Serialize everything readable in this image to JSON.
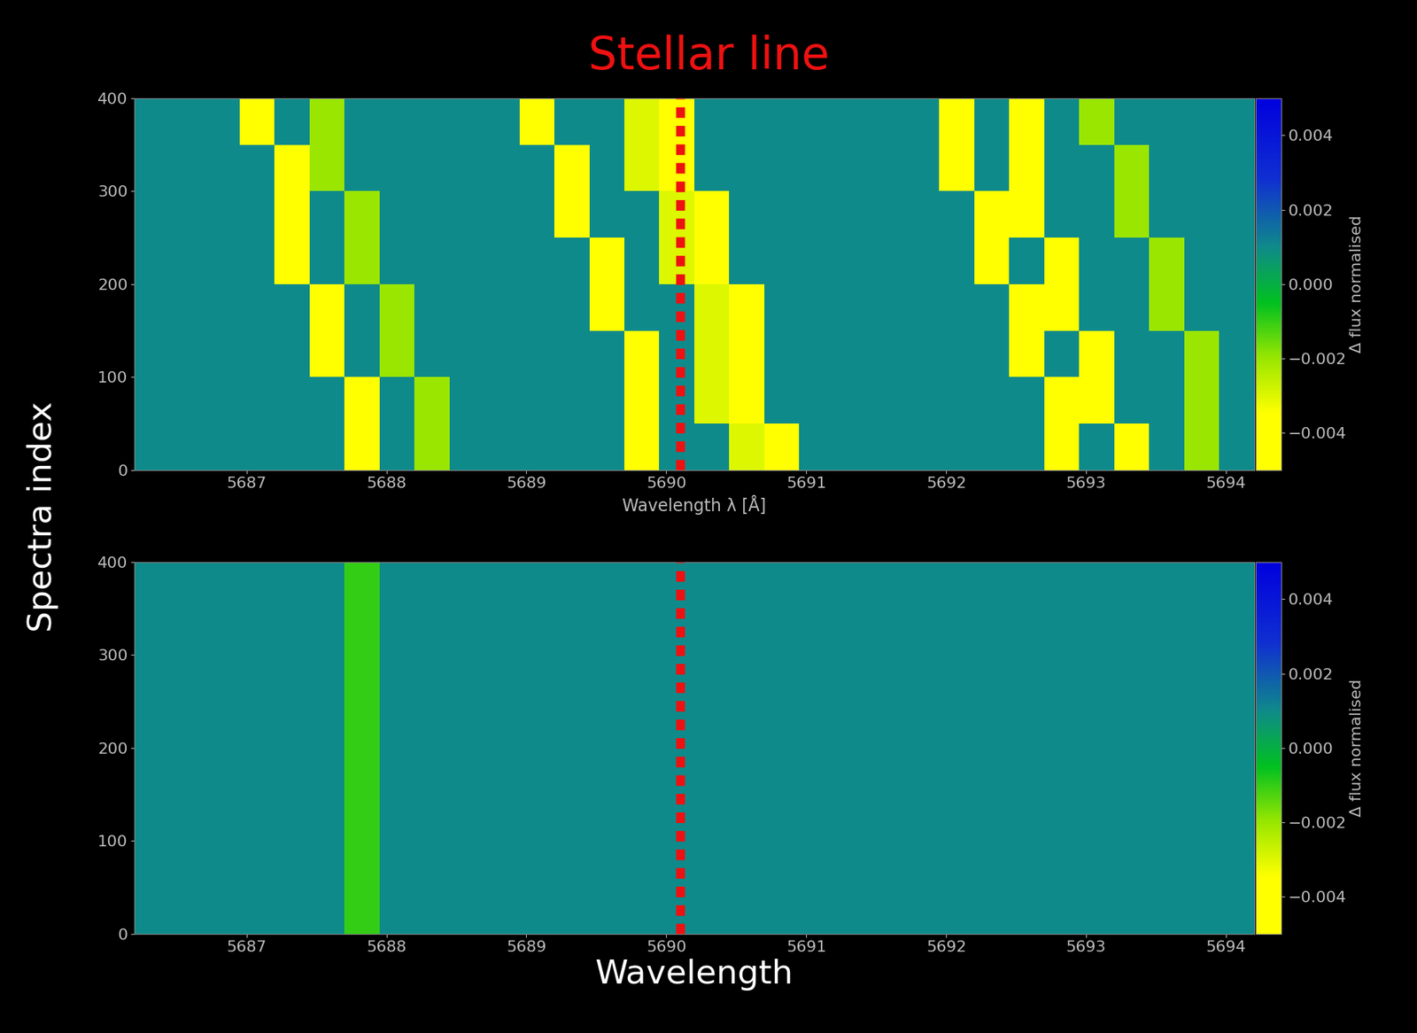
{
  "chart_data": [
    {
      "type": "heatmap",
      "title": "Stellar line",
      "ylabel": "Spectra index",
      "xlabel": "Wavelength λ [Å]",
      "x_bins": [
        5686.2,
        5686.45,
        5686.7,
        5686.95,
        5687.2,
        5687.45,
        5687.7,
        5687.95,
        5688.2,
        5688.45,
        5688.7,
        5688.95,
        5689.2,
        5689.45,
        5689.7,
        5689.95,
        5690.2,
        5690.45,
        5690.7,
        5690.95,
        5691.2,
        5691.45,
        5691.7,
        5691.95,
        5692.2,
        5692.45,
        5692.7,
        5692.95,
        5693.2,
        5693.45,
        5693.7,
        5693.95,
        5694.2
      ],
      "y_bins": [
        0,
        50,
        100,
        150,
        200,
        250,
        300,
        350,
        400
      ],
      "cells": [
        [
          0.001,
          0.001,
          0.001,
          0.001,
          0.001,
          0.001,
          -0.005,
          0.001,
          -0.002,
          0.001,
          0.001,
          0.001,
          0.001,
          0.001,
          -0.005,
          0.001,
          0.001,
          -0.003,
          -0.005,
          0.001,
          0.001,
          0.001,
          0.001,
          0.001,
          0.001,
          0.001,
          -0.005,
          0.001,
          -0.004,
          0.001,
          -0.002,
          0.001
        ],
        [
          0.001,
          0.001,
          0.001,
          0.001,
          0.001,
          0.001,
          -0.005,
          0.001,
          -0.002,
          0.001,
          0.001,
          0.001,
          0.001,
          0.001,
          -0.005,
          0.001,
          -0.003,
          -0.005,
          0.001,
          0.001,
          0.001,
          0.001,
          0.001,
          0.001,
          0.001,
          0.001,
          -0.005,
          -0.004,
          0.001,
          0.001,
          -0.002,
          0.001
        ],
        [
          0.001,
          0.001,
          0.001,
          0.001,
          0.001,
          -0.005,
          0.001,
          -0.002,
          0.001,
          0.001,
          0.001,
          0.001,
          0.001,
          0.001,
          -0.005,
          0.001,
          -0.003,
          -0.005,
          0.001,
          0.001,
          0.001,
          0.001,
          0.001,
          0.001,
          0.001,
          -0.005,
          0.001,
          -0.004,
          0.001,
          0.001,
          -0.002,
          0.001
        ],
        [
          0.001,
          0.001,
          0.001,
          0.001,
          0.001,
          -0.005,
          0.001,
          -0.002,
          0.001,
          0.001,
          0.001,
          0.001,
          0.001,
          -0.005,
          0.001,
          0.001,
          -0.003,
          -0.005,
          0.001,
          0.001,
          0.001,
          0.001,
          0.001,
          0.001,
          0.001,
          -0.005,
          -0.004,
          0.001,
          0.001,
          -0.002,
          0.001,
          0.001
        ],
        [
          0.001,
          0.001,
          0.001,
          0.001,
          -0.005,
          0.001,
          -0.002,
          0.001,
          0.001,
          0.001,
          0.001,
          0.001,
          0.001,
          -0.005,
          0.001,
          -0.003,
          -0.005,
          0.001,
          0.001,
          0.001,
          0.001,
          0.001,
          0.001,
          0.001,
          -0.005,
          0.001,
          -0.004,
          0.001,
          0.001,
          -0.002,
          0.001,
          0.001
        ],
        [
          0.001,
          0.001,
          0.001,
          0.001,
          -0.005,
          0.001,
          -0.002,
          0.001,
          0.001,
          0.001,
          0.001,
          0.001,
          -0.005,
          0.001,
          0.001,
          -0.003,
          -0.005,
          0.001,
          0.001,
          0.001,
          0.001,
          0.001,
          0.001,
          0.001,
          -0.005,
          -0.004,
          0.001,
          0.001,
          -0.002,
          0.001,
          0.001,
          0.001
        ],
        [
          0.001,
          0.001,
          0.001,
          0.001,
          -0.005,
          -0.002,
          0.001,
          0.001,
          0.001,
          0.001,
          0.001,
          0.001,
          -0.005,
          0.001,
          -0.003,
          -0.005,
          0.001,
          0.001,
          0.001,
          0.001,
          0.001,
          0.001,
          0.001,
          -0.005,
          0.001,
          -0.004,
          0.001,
          0.001,
          -0.002,
          0.001,
          0.001,
          0.001
        ],
        [
          0.001,
          0.001,
          0.001,
          -0.005,
          0.001,
          -0.002,
          0.001,
          0.001,
          0.001,
          0.001,
          0.001,
          -0.005,
          0.001,
          0.001,
          -0.003,
          -0.005,
          0.001,
          0.001,
          0.001,
          0.001,
          0.001,
          0.001,
          0.001,
          -0.005,
          0.001,
          -0.004,
          0.001,
          -0.002,
          0.001,
          0.001,
          0.001,
          0.001
        ]
      ],
      "xlim": [
        5686.2,
        5694.2
      ],
      "ylim": [
        0,
        400
      ],
      "xticks": [
        5687,
        5688,
        5689,
        5690,
        5691,
        5692,
        5693,
        5694
      ],
      "yticks": [
        0,
        100,
        200,
        300,
        400
      ],
      "reference_line": 5690.1,
      "colorbar": {
        "label": "Δ flux normalised",
        "range": [
          -0.005,
          0.005
        ],
        "ticks": [
          {
            "value": -0.004,
            "label": "−0.004"
          },
          {
            "value": -0.002,
            "label": "−0.002"
          },
          {
            "value": 0,
            "label": "0.000"
          },
          0.002,
          0.004
        ]
      }
    },
    {
      "type": "heatmap",
      "xlabel": "Wavelength",
      "x_bins": [
        5686.2,
        5686.45,
        5686.7,
        5686.95,
        5687.2,
        5687.45,
        5687.7,
        5687.95,
        5688.2,
        5688.45,
        5688.7,
        5688.95,
        5689.2,
        5689.45,
        5689.7,
        5689.95,
        5690.2,
        5690.45,
        5690.7,
        5690.95,
        5691.2,
        5691.45,
        5691.7,
        5691.95,
        5692.2,
        5692.45,
        5692.7,
        5692.95,
        5693.2,
        5693.45,
        5693.7,
        5693.95,
        5694.2
      ],
      "y_bins": [
        0,
        50,
        100,
        150,
        200,
        250,
        300,
        350,
        400
      ],
      "cells": [
        [
          0.001,
          0.001,
          0.001,
          0.001,
          0.001,
          0.001,
          -0.001,
          0.001,
          0.001,
          0.001,
          0.001,
          0.001,
          0.001,
          0.001,
          0.001,
          0.001,
          0.001,
          0.001,
          0.001,
          0.001,
          0.001,
          0.001,
          0.001,
          0.001,
          0.001,
          0.001,
          0.001,
          0.001,
          0.001,
          0.001,
          0.001,
          0.001
        ],
        [
          0.001,
          0.001,
          0.001,
          0.001,
          0.001,
          0.001,
          -0.001,
          0.001,
          0.001,
          0.001,
          0.001,
          0.001,
          0.001,
          0.001,
          0.001,
          0.001,
          0.001,
          0.001,
          0.001,
          0.001,
          0.001,
          0.001,
          0.001,
          0.001,
          0.001,
          0.001,
          0.001,
          0.001,
          0.001,
          0.001,
          0.001,
          0.001
        ],
        [
          0.001,
          0.001,
          0.001,
          0.001,
          0.001,
          0.001,
          -0.001,
          0.001,
          0.001,
          0.001,
          0.001,
          0.001,
          0.001,
          0.001,
          0.001,
          0.001,
          0.001,
          0.001,
          0.001,
          0.001,
          0.001,
          0.001,
          0.001,
          0.001,
          0.001,
          0.001,
          0.001,
          0.001,
          0.001,
          0.001,
          0.001,
          0.001
        ],
        [
          0.001,
          0.001,
          0.001,
          0.001,
          0.001,
          0.001,
          -0.001,
          0.001,
          0.001,
          0.001,
          0.001,
          0.001,
          0.001,
          0.001,
          0.001,
          0.001,
          0.001,
          0.001,
          0.001,
          0.001,
          0.001,
          0.001,
          0.001,
          0.001,
          0.001,
          0.001,
          0.001,
          0.001,
          0.001,
          0.001,
          0.001,
          0.001
        ],
        [
          0.001,
          0.001,
          0.001,
          0.001,
          0.001,
          0.001,
          -0.001,
          0.001,
          0.001,
          0.001,
          0.001,
          0.001,
          0.001,
          0.001,
          0.001,
          0.001,
          0.001,
          0.001,
          0.001,
          0.001,
          0.001,
          0.001,
          0.001,
          0.001,
          0.001,
          0.001,
          0.001,
          0.001,
          0.001,
          0.001,
          0.001,
          0.001
        ],
        [
          0.001,
          0.001,
          0.001,
          0.001,
          0.001,
          0.001,
          -0.001,
          0.001,
          0.001,
          0.001,
          0.001,
          0.001,
          0.001,
          0.001,
          0.001,
          0.001,
          0.001,
          0.001,
          0.001,
          0.001,
          0.001,
          0.001,
          0.001,
          0.001,
          0.001,
          0.001,
          0.001,
          0.001,
          0.001,
          0.001,
          0.001,
          0.001
        ],
        [
          0.001,
          0.001,
          0.001,
          0.001,
          0.001,
          0.001,
          -0.001,
          0.001,
          0.001,
          0.001,
          0.001,
          0.001,
          0.001,
          0.001,
          0.001,
          0.001,
          0.001,
          0.001,
          0.001,
          0.001,
          0.001,
          0.001,
          0.001,
          0.001,
          0.001,
          0.001,
          0.001,
          0.001,
          0.001,
          0.001,
          0.001,
          0.001
        ],
        [
          0.001,
          0.001,
          0.001,
          0.001,
          0.001,
          0.001,
          -0.001,
          0.001,
          0.001,
          0.001,
          0.001,
          0.001,
          0.001,
          0.001,
          0.001,
          0.001,
          0.001,
          0.001,
          0.001,
          0.001,
          0.001,
          0.001,
          0.001,
          0.001,
          0.001,
          0.001,
          0.001,
          0.001,
          0.001,
          0.001,
          0.001,
          0.001
        ]
      ],
      "xlim": [
        5686.2,
        5694.2
      ],
      "ylim": [
        0,
        400
      ],
      "xticks": [
        5687,
        5688,
        5689,
        5690,
        5691,
        5692,
        5693,
        5694
      ],
      "yticks": [
        0,
        100,
        200,
        300,
        400
      ],
      "reference_line": 5690.1,
      "colorbar": {
        "label": "Δ flux normalised",
        "range": [
          -0.005,
          0.005
        ],
        "ticks": [
          {
            "value": -0.004,
            "label": "−0.004"
          },
          {
            "value": -0.002,
            "label": "−0.002"
          },
          {
            "value": 0,
            "label": "0.000"
          },
          0.002,
          0.004
        ]
      }
    }
  ]
}
